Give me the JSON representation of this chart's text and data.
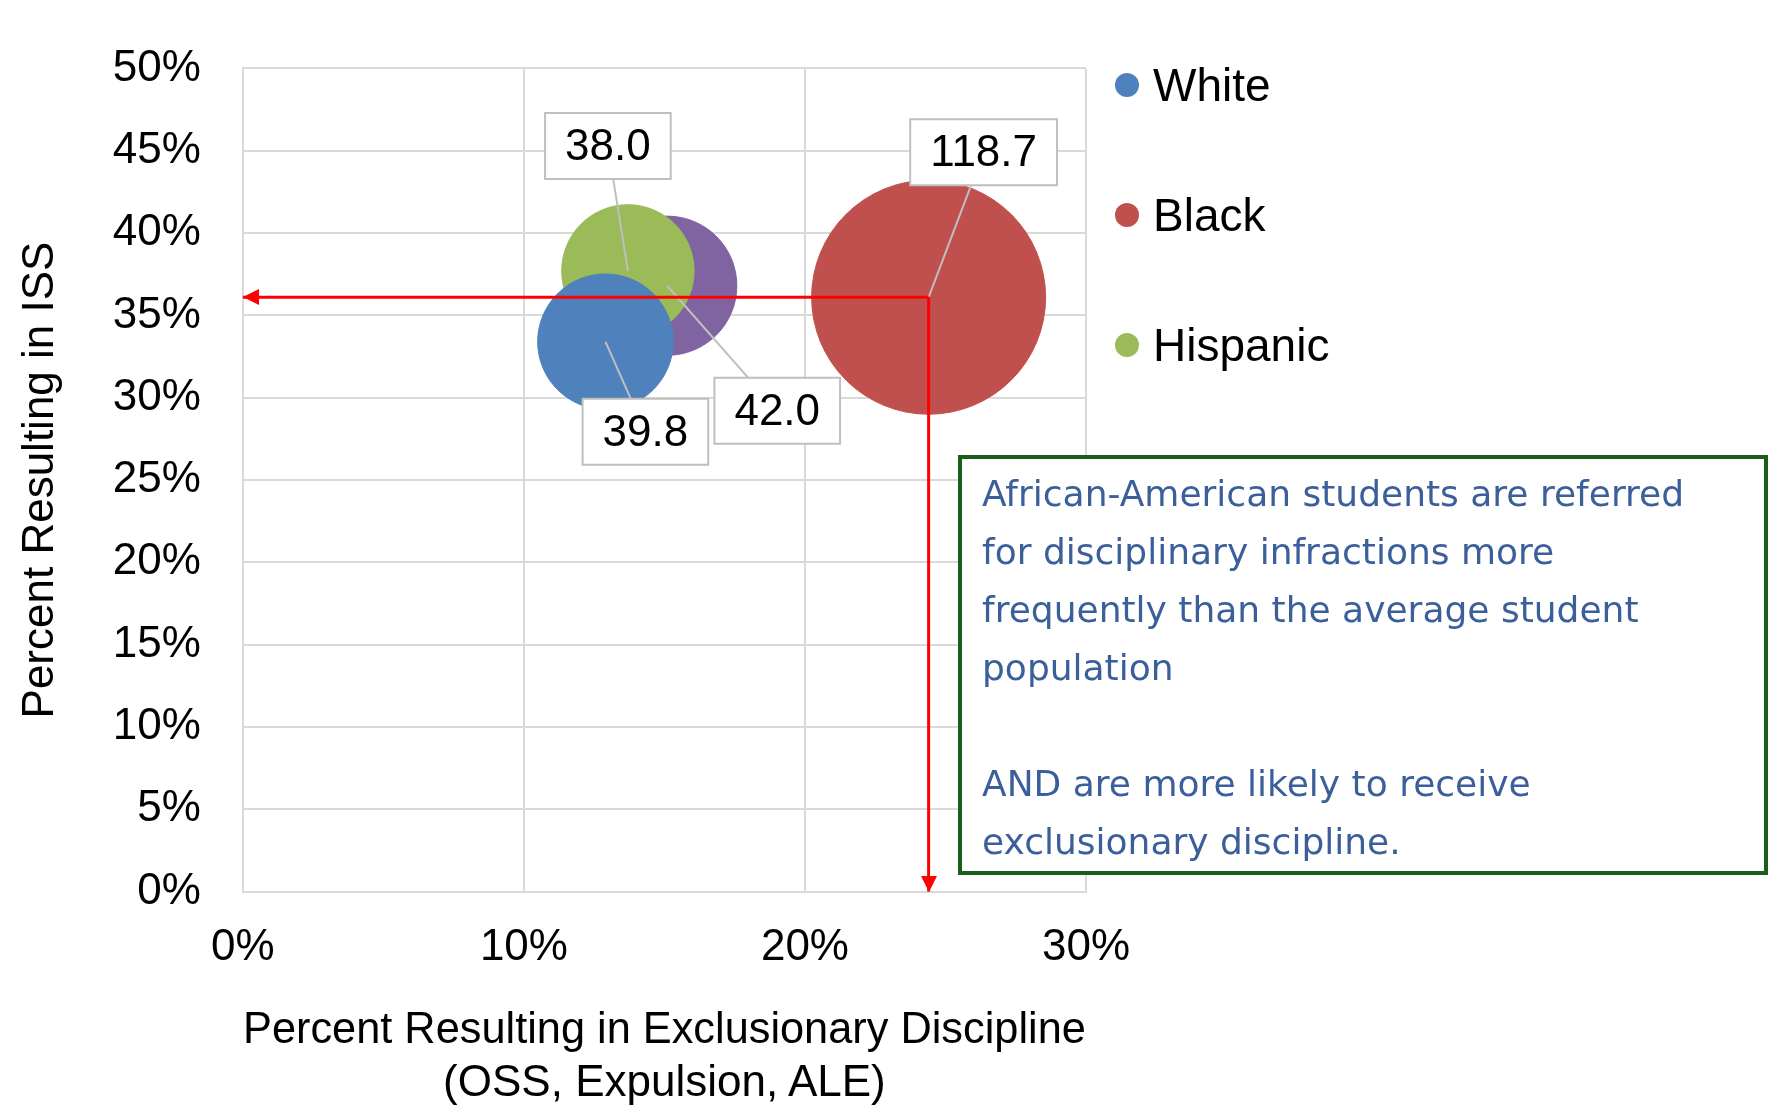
{
  "chart_data": {
    "type": "bubble",
    "xlabel": "Percent Resulting in Exclusionary Discipline\n(OSS, Expulsion, ALE)",
    "ylabel": "Percent Resulting in ISS",
    "series": [
      {
        "name": "White",
        "color": "#4f81bd",
        "x": [
          12.9
        ],
        "values": [
          33.4
        ],
        "sizes": [
          39.8
        ],
        "value_labels": [
          "39.8"
        ]
      },
      {
        "name": "Black",
        "color": "#c0504d",
        "x": [
          24.4
        ],
        "values": [
          36.1
        ],
        "sizes": [
          118.7
        ],
        "value_labels": [
          "118.7"
        ]
      },
      {
        "name": "Hispanic",
        "color": "#9bbb59",
        "x": [
          13.7
        ],
        "values": [
          37.7
        ],
        "sizes": [
          38.0
        ],
        "value_labels": [
          "38.0"
        ]
      },
      {
        "color": "#8064a2",
        "x": [
          15.1
        ],
        "values": [
          36.8
        ],
        "sizes": [
          42.0
        ],
        "value_labels": [
          "42.0"
        ]
      }
    ],
    "xlim": [
      0,
      30
    ],
    "xticks": [
      {
        "value": 0,
        "label": "0%"
      },
      {
        "value": 10,
        "label": "10%"
      },
      {
        "value": 20,
        "label": "20%"
      },
      {
        "value": 30,
        "label": "30%"
      }
    ],
    "ylim": [
      0,
      50
    ],
    "yticks": [
      {
        "value": 0,
        "label": "0%"
      },
      {
        "value": 5,
        "label": "5%"
      },
      {
        "value": 10,
        "label": "10%"
      },
      {
        "value": 15,
        "label": "15%"
      },
      {
        "value": 20,
        "label": "20%"
      },
      {
        "value": 25,
        "label": "25%"
      },
      {
        "value": 30,
        "label": "30%"
      },
      {
        "value": 35,
        "label": "35%"
      },
      {
        "value": 40,
        "label": "40%"
      },
      {
        "value": 45,
        "label": "45%"
      },
      {
        "value": 50,
        "label": "50%"
      }
    ],
    "ref_lines": [
      {
        "axis": "x",
        "value": 24.4,
        "color": "#ff0000"
      },
      {
        "axis": "y",
        "value": 36.1,
        "color": "#ff0000"
      }
    ],
    "annotations": [
      "African-American students are referred for disciplinary infractions more frequently than the average student population\n\nAND are more likely to receive exclusionary discipline."
    ],
    "grid": true,
    "legend": "right"
  }
}
